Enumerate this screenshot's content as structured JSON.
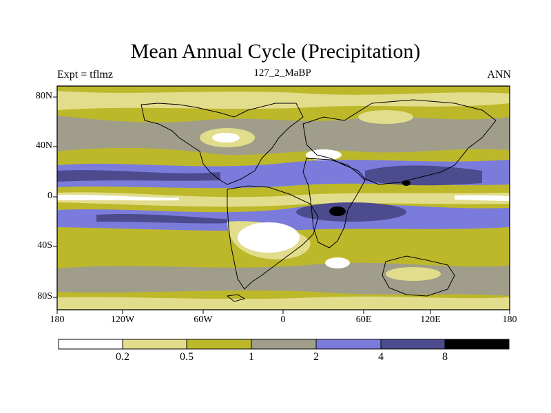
{
  "title": "Mean Annual Cycle (Precipitation)",
  "left_label": "Expt = tflmz",
  "center_label": "127_2_MaBP",
  "right_label": "ANN",
  "lat_labels": [
    "80N",
    "40N",
    "0",
    "40S",
    "80S"
  ],
  "lon_labels": [
    "180",
    "120W",
    "60W",
    "0",
    "60E",
    "120E",
    "180"
  ],
  "colorbar": {
    "levels": [
      "0.2",
      "0.5",
      "1",
      "2",
      "4",
      "8"
    ],
    "colors": [
      "#ffffff",
      "#e2dd8c",
      "#bdb82a",
      "#a09e8a",
      "#7b7bdc",
      "#4b4b8e",
      "#000000"
    ]
  },
  "colors": {
    "background": "#ffffff",
    "coast": "#000000"
  }
}
